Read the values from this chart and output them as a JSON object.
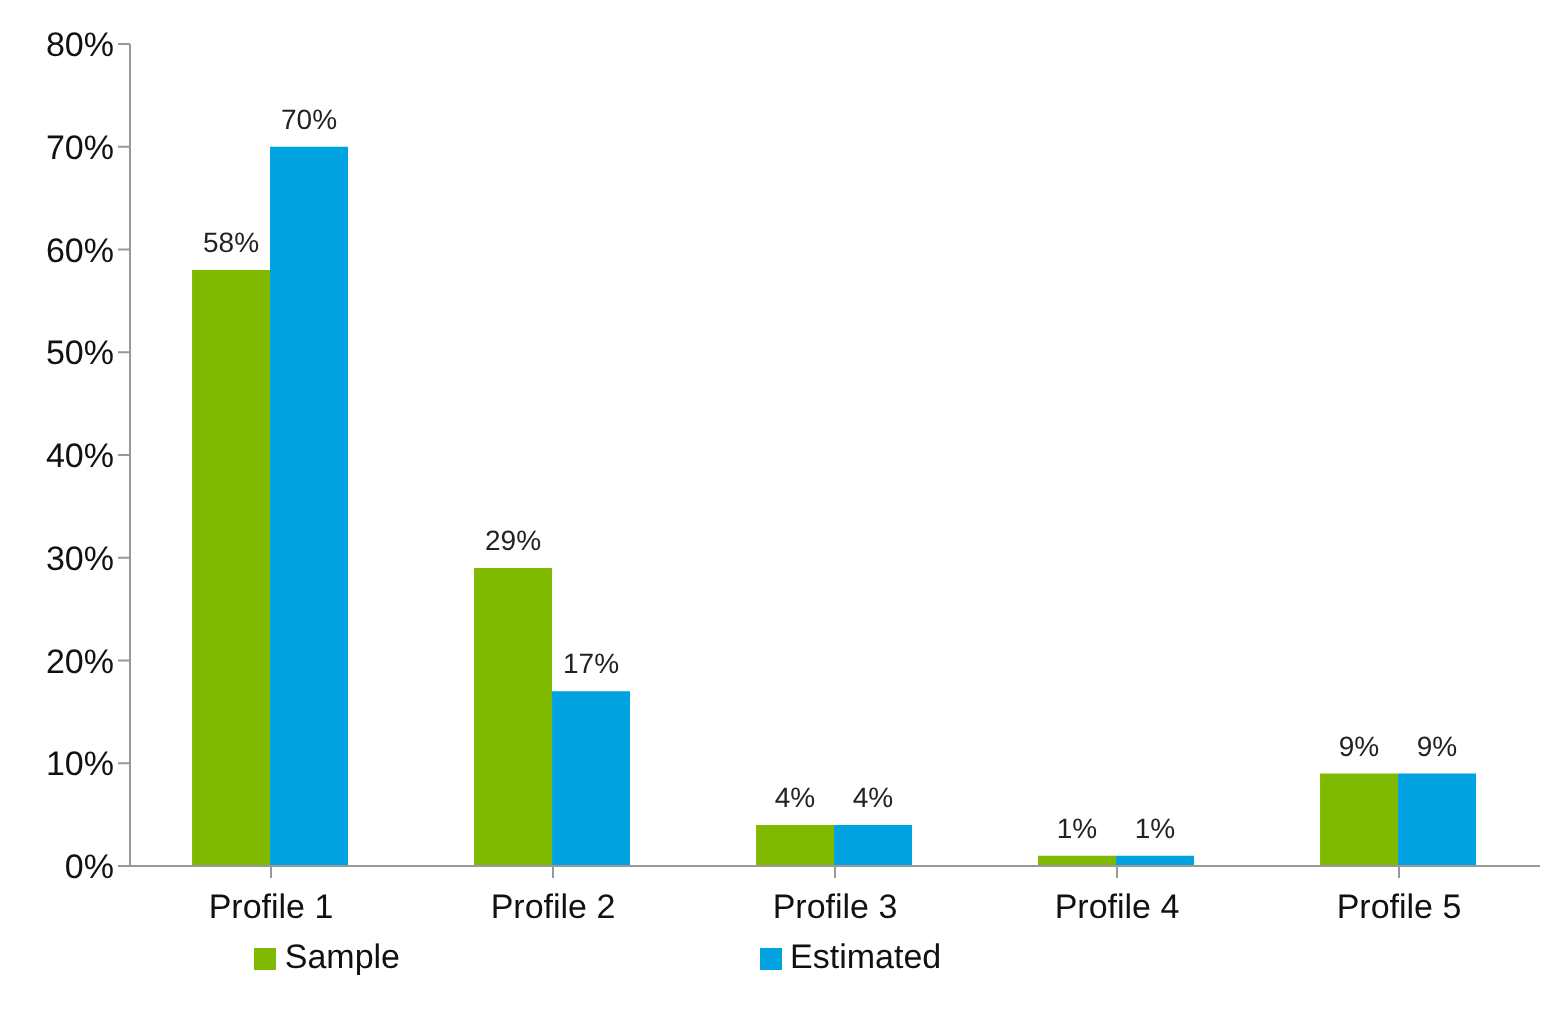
{
  "chart_data": {
    "type": "bar",
    "categories": [
      "Profile 1",
      "Profile 2",
      "Profile 3",
      "Profile 4",
      "Profile 5"
    ],
    "series": [
      {
        "name": "Sample",
        "color": "#7fba00",
        "values": [
          58,
          29,
          4,
          1,
          9
        ],
        "value_labels": [
          "58%",
          "29%",
          "4%",
          "1%",
          "9%"
        ]
      },
      {
        "name": "Estimated",
        "color": "#00a2e0",
        "values": [
          70,
          17,
          4,
          1,
          9
        ],
        "value_labels": [
          "70%",
          "17%",
          "4%",
          "1%",
          "9%"
        ]
      }
    ],
    "ylim": [
      0,
      80
    ],
    "yticks": [
      {
        "value": 0,
        "label": "0%"
      },
      {
        "value": 10,
        "label": "10%"
      },
      {
        "value": 20,
        "label": "20%"
      },
      {
        "value": 30,
        "label": "30%"
      },
      {
        "value": 40,
        "label": "40%"
      },
      {
        "value": 50,
        "label": "50%"
      },
      {
        "value": 60,
        "label": "60%"
      },
      {
        "value": 70,
        "label": "70%"
      },
      {
        "value": 80,
        "label": "80%"
      }
    ],
    "grid": false,
    "legend": "bottom"
  }
}
